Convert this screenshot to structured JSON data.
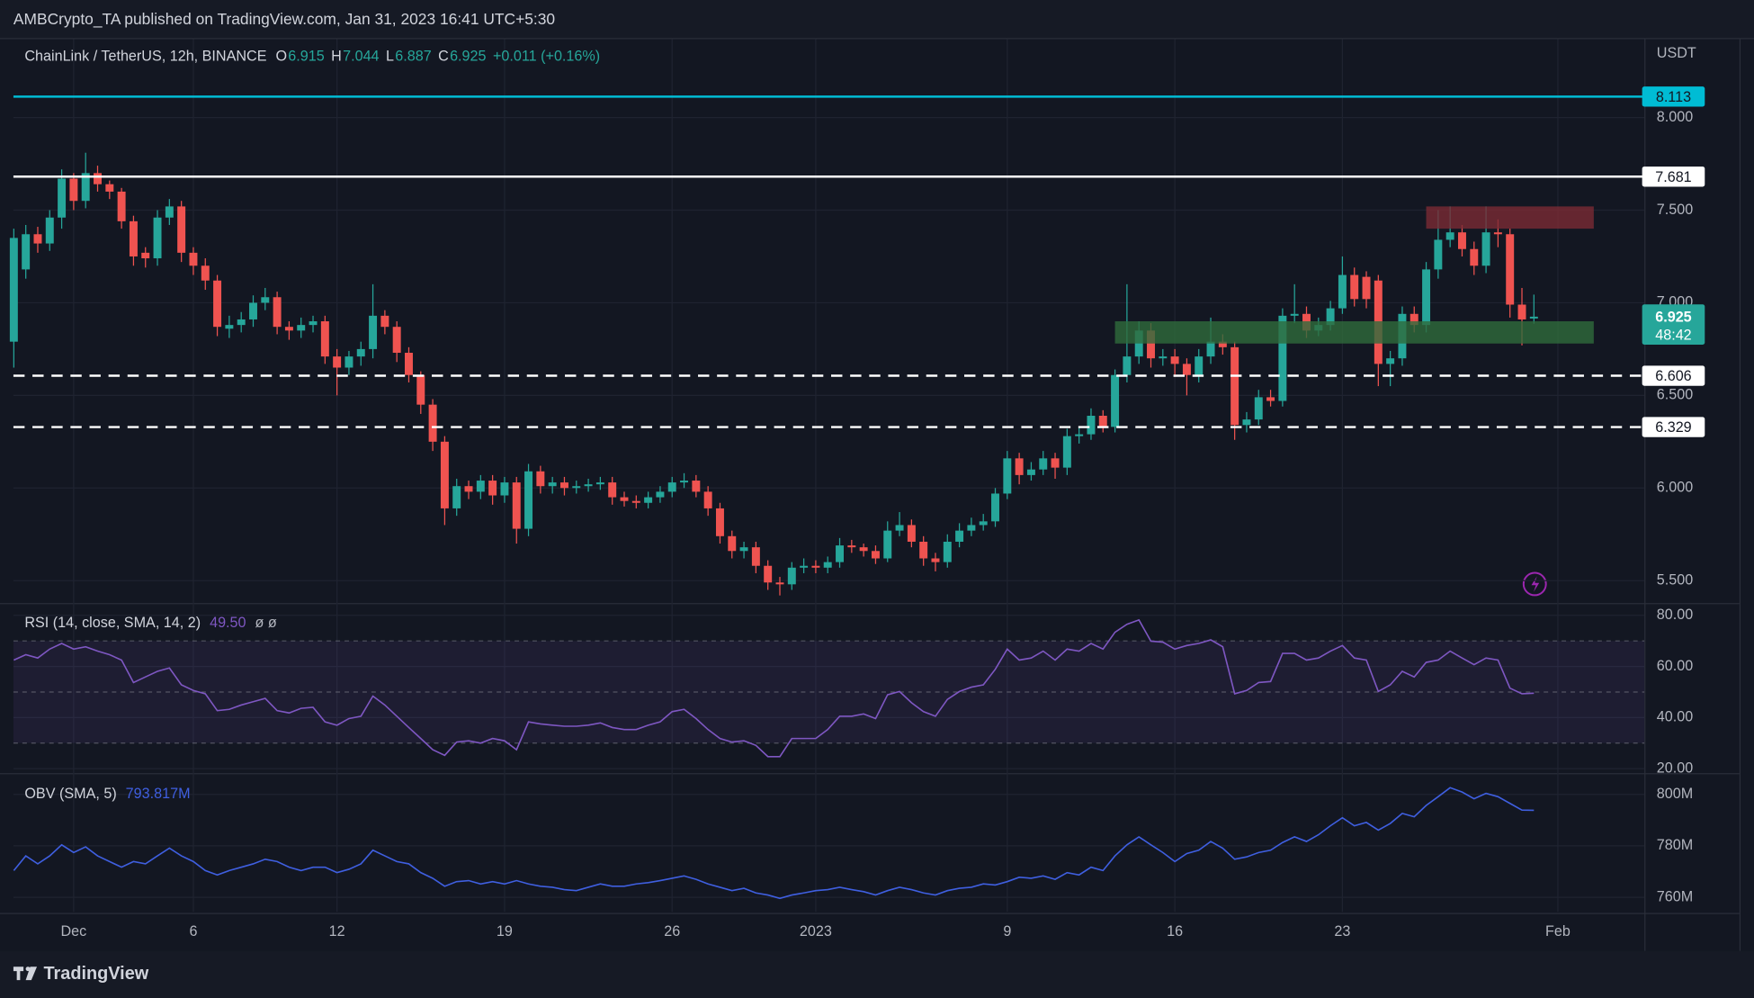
{
  "header": {
    "publisher": "AMBCrypto_TA published on TradingView.com, Jan 31, 2023 16:41 UTC+5:30"
  },
  "footer": {
    "brand": "TradingView"
  },
  "chart_data": [
    {
      "type": "candlestick",
      "symbol": "ChainLink / TetherUS, 12h, BINANCE",
      "ohlc_keys": [
        "O",
        "H",
        "L",
        "C"
      ],
      "change_label": "+0.011 (+0.16%)",
      "countdown": "48:42",
      "y_unit": "USDT",
      "up_color": "#26a69a",
      "down_color": "#ef5350",
      "grid": true,
      "ylim": [
        5.385,
        8.423
      ],
      "yticks": [
        {
          "value": 5.5,
          "label": "5.500"
        },
        {
          "value": 6,
          "label": "6.000"
        },
        {
          "value": 6.5,
          "label": "6.500"
        },
        {
          "value": 7,
          "label": "7.000"
        },
        {
          "value": 7.5,
          "label": "7.500"
        },
        {
          "value": 8,
          "label": "8.000"
        }
      ],
      "open": [
        6.79,
        7.18,
        7.37,
        7.32,
        7.46,
        7.67,
        7.55,
        7.7,
        7.64,
        7.6,
        7.44,
        7.27,
        7.24,
        7.46,
        7.52,
        7.27,
        7.2,
        7.12,
        6.86,
        6.88,
        6.91,
        7.0,
        7.03,
        6.87,
        6.85,
        6.88,
        6.9,
        6.71,
        6.65,
        6.71,
        6.75,
        6.93,
        6.87,
        6.73,
        6.61,
        6.45,
        6.25,
        5.89,
        6.01,
        5.98,
        6.04,
        5.96,
        6.03,
        5.78,
        6.09,
        6.01,
        6.03,
        6.0,
        6.01,
        6.02,
        6.03,
        5.95,
        5.93,
        5.92,
        5.95,
        5.98,
        6.03,
        6.04,
        5.98,
        5.89,
        5.74,
        5.66,
        5.68,
        5.58,
        5.49,
        5.48,
        5.57,
        5.58,
        5.57,
        5.6,
        5.69,
        5.68,
        5.66,
        5.62,
        5.77,
        5.8,
        5.71,
        5.62,
        5.6,
        5.71,
        5.77,
        5.8,
        5.82,
        5.97,
        6.16,
        6.07,
        6.1,
        6.16,
        6.11,
        6.28,
        6.29,
        6.39,
        6.33,
        6.61,
        6.71,
        6.85,
        6.7,
        6.71,
        6.67,
        6.61,
        6.71,
        6.79,
        6.76,
        6.34,
        6.37,
        6.49,
        6.47,
        6.93,
        6.94,
        6.85,
        6.88,
        6.97,
        7.15,
        7.14,
        7.12,
        6.67,
        6.7,
        6.94,
        6.88,
        7.18,
        7.34,
        7.38,
        7.29,
        7.2,
        7.38,
        7.37,
        6.99,
        6.915,
        null,
        null
      ],
      "high": [
        7.4,
        7.42,
        7.41,
        7.5,
        7.72,
        7.7,
        7.81,
        7.74,
        7.66,
        7.62,
        7.47,
        7.3,
        7.5,
        7.56,
        7.55,
        7.3,
        7.24,
        7.15,
        6.93,
        6.95,
        7.04,
        7.08,
        7.06,
        6.9,
        6.92,
        6.93,
        6.93,
        6.75,
        6.74,
        6.79,
        7.1,
        6.96,
        6.9,
        6.76,
        6.63,
        6.48,
        6.28,
        6.05,
        6.04,
        6.07,
        6.07,
        6.06,
        6.06,
        6.13,
        6.12,
        6.06,
        6.06,
        6.04,
        6.05,
        6.06,
        6.06,
        5.98,
        5.96,
        5.98,
        6.01,
        6.06,
        6.08,
        6.07,
        6.01,
        5.92,
        5.77,
        5.71,
        5.71,
        5.61,
        5.52,
        5.6,
        5.62,
        5.61,
        5.63,
        5.73,
        5.72,
        5.7,
        5.69,
        5.82,
        5.87,
        5.83,
        5.74,
        5.65,
        5.75,
        5.81,
        5.84,
        5.86,
        6.0,
        6.2,
        6.19,
        6.14,
        6.2,
        6.19,
        6.32,
        6.33,
        6.43,
        6.42,
        6.64,
        7.1,
        6.9,
        6.89,
        6.75,
        6.75,
        6.7,
        6.75,
        6.92,
        6.83,
        6.79,
        6.41,
        6.53,
        6.53,
        6.97,
        7.1,
        6.98,
        6.92,
        7.01,
        7.25,
        7.19,
        7.17,
        7.15,
        6.74,
        6.98,
        6.98,
        7.22,
        7.5,
        7.52,
        7.42,
        7.33,
        7.52,
        7.45,
        7.4,
        7.08,
        7.044,
        null,
        null
      ],
      "low": [
        6.65,
        7.13,
        7.27,
        7.28,
        7.4,
        7.5,
        7.51,
        7.6,
        7.56,
        7.4,
        7.2,
        7.19,
        7.2,
        7.42,
        7.22,
        7.15,
        7.07,
        6.82,
        6.81,
        6.84,
        6.87,
        6.96,
        6.83,
        6.8,
        6.81,
        6.84,
        6.67,
        6.5,
        6.61,
        6.66,
        6.7,
        6.83,
        6.68,
        6.57,
        6.4,
        6.2,
        5.8,
        5.85,
        5.94,
        5.94,
        5.91,
        5.92,
        5.7,
        5.74,
        5.97,
        5.97,
        5.96,
        5.97,
        5.98,
        5.99,
        5.91,
        5.9,
        5.89,
        5.89,
        5.92,
        5.95,
        6.0,
        5.95,
        5.85,
        5.7,
        5.62,
        5.62,
        5.54,
        5.45,
        5.42,
        5.45,
        5.54,
        5.54,
        5.54,
        5.57,
        5.65,
        5.63,
        5.59,
        5.6,
        5.74,
        5.68,
        5.58,
        5.55,
        5.57,
        5.68,
        5.74,
        5.77,
        5.79,
        5.94,
        6.02,
        6.04,
        6.07,
        6.05,
        6.07,
        6.24,
        6.26,
        6.3,
        6.3,
        6.57,
        6.67,
        6.65,
        6.66,
        6.6,
        6.5,
        6.57,
        6.67,
        6.72,
        6.26,
        6.3,
        6.34,
        6.44,
        6.44,
        6.89,
        6.81,
        6.82,
        6.85,
        6.94,
        6.98,
        6.97,
        6.55,
        6.55,
        6.66,
        6.84,
        6.84,
        7.13,
        7.3,
        7.25,
        7.15,
        7.16,
        7.3,
        6.92,
        6.77,
        6.887,
        null,
        null
      ],
      "close": [
        7.35,
        7.37,
        7.32,
        7.46,
        7.67,
        7.55,
        7.7,
        7.64,
        7.6,
        7.44,
        7.25,
        7.24,
        7.46,
        7.52,
        7.27,
        7.2,
        7.12,
        6.87,
        6.88,
        6.91,
        7.0,
        7.03,
        6.87,
        6.85,
        6.88,
        6.9,
        6.71,
        6.65,
        6.71,
        6.75,
        6.93,
        6.87,
        6.73,
        6.61,
        6.45,
        6.25,
        5.89,
        6.01,
        5.98,
        6.04,
        5.96,
        6.03,
        5.78,
        6.09,
        6.01,
        6.03,
        6.0,
        6.01,
        6.02,
        6.03,
        5.95,
        5.93,
        5.92,
        5.95,
        5.98,
        6.03,
        6.04,
        5.98,
        5.89,
        5.74,
        5.66,
        5.68,
        5.58,
        5.49,
        5.48,
        5.57,
        5.58,
        5.57,
        5.6,
        5.69,
        5.68,
        5.66,
        5.62,
        5.77,
        5.8,
        5.71,
        5.62,
        5.6,
        5.71,
        5.77,
        5.8,
        5.82,
        5.97,
        6.16,
        6.07,
        6.1,
        6.16,
        6.11,
        6.28,
        6.29,
        6.39,
        6.33,
        6.61,
        6.71,
        6.85,
        6.7,
        6.71,
        6.67,
        6.61,
        6.71,
        6.79,
        6.76,
        6.34,
        6.37,
        6.49,
        6.47,
        6.93,
        6.94,
        6.85,
        6.88,
        6.97,
        7.15,
        7.02,
        7.02,
        6.67,
        6.7,
        6.94,
        6.88,
        7.18,
        7.34,
        7.38,
        7.29,
        7.2,
        7.38,
        7.37,
        6.99,
        6.91,
        6.925,
        null,
        null
      ],
      "levels": [
        {
          "value": 8.113,
          "color": "#00bcd4",
          "style": "solid"
        },
        {
          "value": 7.681,
          "color": "#ffffff",
          "style": "solid"
        },
        {
          "value": 6.606,
          "color": "#ffffff",
          "style": "dashed"
        },
        {
          "value": 6.329,
          "color": "#ffffff",
          "style": "dashed"
        }
      ],
      "zones": [
        {
          "x_from": 118,
          "x_to": 132,
          "from": 7.4,
          "to": 7.52,
          "color": "#7a2b35"
        },
        {
          "x_from": 92,
          "x_to": 132,
          "from": 6.78,
          "to": 6.9,
          "color": "#2f6b3c"
        }
      ]
    },
    {
      "type": "line",
      "legend": "RSI (14, close, SMA, 14, 2)",
      "legend_value_label": "49.50",
      "legend_extra": "ø ø",
      "color": "#7e57c2",
      "grid": true,
      "ylim": [
        18.68,
        84.38
      ],
      "yticks": [
        {
          "value": 20,
          "label": "20.00"
        },
        {
          "value": 40,
          "label": "40.00"
        },
        {
          "value": 60,
          "label": "60.00"
        },
        {
          "value": 80,
          "label": "80.00"
        }
      ],
      "bands": [
        30,
        50,
        70
      ],
      "values": [
        62.5,
        64.6,
        63.3,
        66.8,
        69.0,
        66.8,
        67.7,
        66.0,
        64.6,
        62.5,
        53.7,
        55.9,
        58.1,
        59.4,
        52.8,
        50.6,
        49.3,
        42.7,
        43.2,
        44.9,
        46.2,
        47.5,
        42.7,
        41.8,
        43.6,
        44.0,
        38.3,
        37.0,
        39.6,
        40.5,
        48.4,
        44.9,
        40.5,
        36.1,
        31.8,
        27.4,
        25.2,
        30.4,
        30.9,
        30.0,
        31.8,
        30.9,
        27.4,
        38.3,
        37.5,
        37.0,
        36.6,
        36.6,
        37.0,
        37.9,
        36.1,
        35.3,
        35.3,
        37.0,
        38.3,
        42.3,
        43.2,
        39.6,
        35.3,
        31.8,
        30.4,
        30.9,
        29.1,
        24.7,
        24.7,
        31.8,
        31.8,
        31.8,
        35.3,
        40.5,
        40.5,
        41.4,
        39.6,
        48.9,
        50.2,
        45.8,
        42.3,
        40.5,
        47.1,
        50.2,
        51.9,
        52.8,
        58.9,
        66.8,
        62.5,
        63.3,
        66.0,
        62.5,
        66.8,
        66.0,
        69.0,
        66.8,
        73.4,
        76.5,
        78.2,
        69.9,
        69.5,
        66.8,
        68.2,
        69.0,
        70.4,
        67.7,
        49.3,
        50.6,
        53.7,
        54.1,
        65.1,
        65.1,
        62.5,
        63.3,
        66.0,
        68.2,
        63.3,
        62.5,
        50.2,
        52.8,
        58.1,
        55.9,
        61.6,
        62.5,
        66.0,
        63.3,
        60.7,
        63.3,
        62.5,
        51.5,
        49.3,
        49.5,
        null,
        null
      ]
    },
    {
      "type": "line",
      "legend": "OBV (SMA, 5)",
      "legend_value_label": "793.817M",
      "color": "#3f5fe0",
      "grid": true,
      "ylim": [
        754350000,
        807830000
      ],
      "yticks": [
        {
          "value": 760000000,
          "label": "760M"
        },
        {
          "value": 780000000,
          "label": "780M"
        },
        {
          "value": 800000000,
          "label": "800M"
        }
      ],
      "categories": [
        null,
        null,
        null,
        null,
        null,
        "Dec",
        null,
        null,
        null,
        null,
        null,
        null,
        null,
        null,
        null,
        "6",
        null,
        null,
        null,
        null,
        null,
        null,
        null,
        null,
        null,
        null,
        null,
        "12",
        null,
        null,
        null,
        null,
        null,
        null,
        null,
        null,
        null,
        null,
        null,
        null,
        null,
        "19",
        null,
        null,
        null,
        null,
        null,
        null,
        null,
        null,
        null,
        null,
        null,
        null,
        null,
        "26",
        null,
        null,
        null,
        null,
        null,
        null,
        null,
        null,
        null,
        null,
        null,
        "2023",
        null,
        null,
        null,
        null,
        null,
        null,
        null,
        null,
        null,
        null,
        null,
        null,
        null,
        null,
        null,
        "9",
        null,
        null,
        null,
        null,
        null,
        null,
        null,
        null,
        null,
        null,
        null,
        null,
        null,
        "16",
        null,
        null,
        null,
        null,
        null,
        null,
        null,
        null,
        null,
        null,
        null,
        null,
        null,
        "23",
        null,
        null,
        null,
        null,
        null,
        null,
        null,
        null,
        null,
        null,
        null,
        null,
        null,
        null,
        null,
        null,
        null,
        "Feb"
      ],
      "values": [
        770400000,
        776100000,
        773000000,
        776100000,
        780400000,
        777400000,
        779600000,
        776100000,
        773900000,
        771700000,
        773900000,
        773000000,
        776100000,
        779100000,
        776100000,
        773900000,
        770400000,
        768700000,
        770400000,
        771700000,
        773000000,
        774800000,
        773900000,
        771700000,
        770400000,
        771700000,
        771700000,
        769600000,
        770900000,
        773000000,
        778300000,
        776100000,
        773900000,
        773000000,
        769600000,
        767400000,
        764300000,
        766100000,
        766500000,
        765200000,
        766100000,
        765200000,
        766500000,
        765200000,
        764300000,
        763900000,
        763000000,
        762600000,
        763900000,
        765200000,
        764300000,
        764300000,
        765200000,
        765700000,
        766500000,
        767400000,
        768300000,
        767000000,
        765200000,
        763900000,
        762600000,
        763500000,
        761700000,
        760900000,
        759600000,
        760900000,
        761700000,
        762600000,
        763000000,
        763900000,
        763000000,
        762200000,
        760900000,
        762600000,
        763900000,
        763000000,
        761700000,
        760900000,
        762600000,
        763500000,
        763900000,
        765200000,
        764800000,
        766100000,
        767800000,
        767400000,
        768300000,
        767000000,
        769600000,
        768700000,
        771700000,
        770400000,
        776100000,
        780400000,
        783500000,
        780400000,
        777400000,
        773900000,
        777000000,
        778300000,
        781700000,
        779100000,
        774800000,
        775700000,
        777400000,
        778300000,
        781300000,
        783500000,
        781700000,
        784300000,
        787800000,
        790900000,
        787800000,
        789100000,
        786100000,
        788700000,
        792600000,
        791300000,
        795700000,
        799100000,
        802600000,
        800900000,
        798300000,
        800400000,
        799100000,
        796500000,
        793900000,
        793817000,
        null,
        null
      ]
    }
  ]
}
